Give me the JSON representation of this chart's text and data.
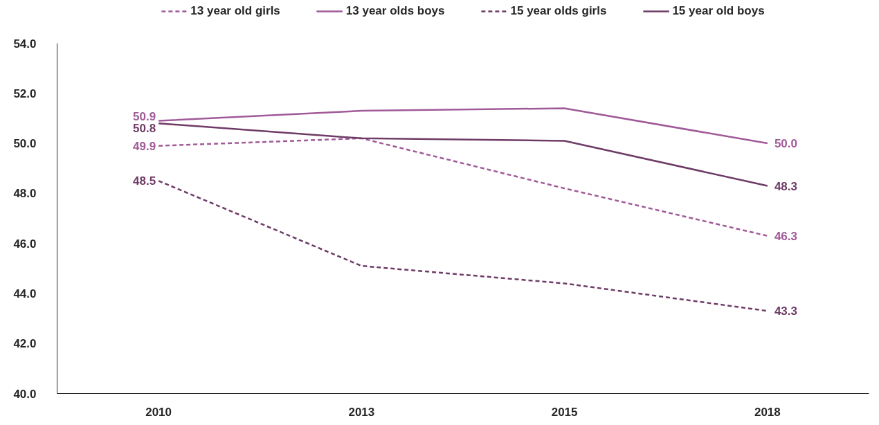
{
  "chart_data": {
    "type": "line",
    "categories": [
      "2010",
      "2013",
      "2015",
      "2018"
    ],
    "ylim": [
      40,
      54
    ],
    "yticks": [
      {
        "value": 40,
        "label": "40.0"
      },
      {
        "value": 42,
        "label": "42.0"
      },
      {
        "value": 44,
        "label": "44.0"
      },
      {
        "value": 46,
        "label": "46.0"
      },
      {
        "value": 48,
        "label": "48.0"
      },
      {
        "value": 50,
        "label": "50.0"
      },
      {
        "value": 52,
        "label": "52.0"
      },
      {
        "value": 54,
        "label": "54.0"
      }
    ],
    "legend": "top",
    "series": [
      {
        "name": "13 year old girls",
        "color": "#a05a98",
        "line_style": "dashed",
        "values": [
          49.9,
          50.2,
          48.2,
          46.3
        ],
        "value_labels": [
          "49.9",
          null,
          null,
          "46.3"
        ]
      },
      {
        "name": "13 year olds boys",
        "color": "#a05a98",
        "line_style": "solid",
        "values": [
          50.9,
          51.3,
          51.4,
          50.0
        ],
        "value_labels": [
          "50.9",
          null,
          null,
          "50.0"
        ]
      },
      {
        "name": "15 year olds girls",
        "color": "#6e3b66",
        "line_style": "dashed",
        "values": [
          48.5,
          45.1,
          44.4,
          43.3
        ],
        "value_labels": [
          "48.5",
          null,
          null,
          "43.3"
        ]
      },
      {
        "name": "15 year old boys",
        "color": "#6e3b66",
        "line_style": "solid",
        "values": [
          50.8,
          50.2,
          50.1,
          48.3
        ],
        "value_labels": [
          "50.8",
          null,
          null,
          "48.3"
        ]
      }
    ]
  }
}
